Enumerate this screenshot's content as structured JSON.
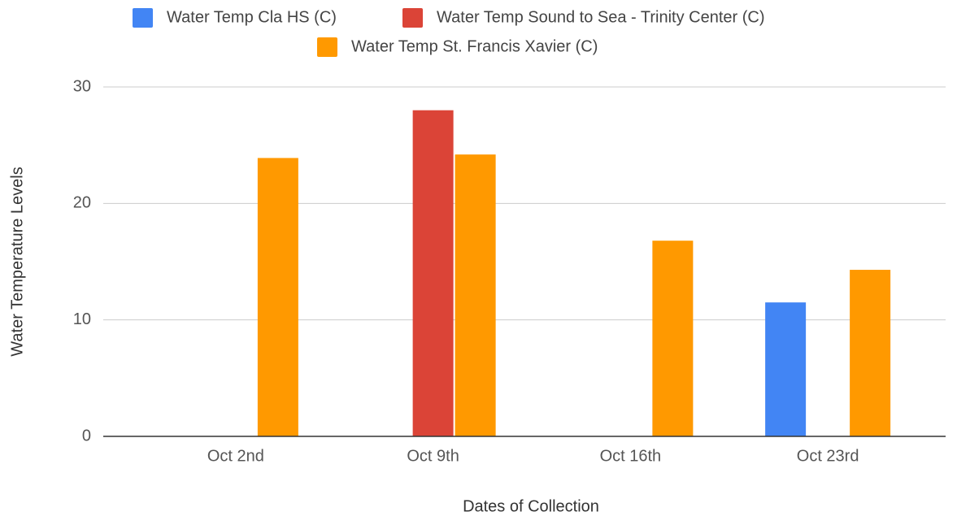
{
  "chart_data": {
    "type": "bar",
    "xlabel": "Dates of Collection",
    "ylabel": "Water Temperature Levels",
    "categories": [
      "Oct 2nd",
      "Oct 9th",
      "Oct 16th",
      "Oct 23rd"
    ],
    "series": [
      {
        "name": "Water Temp Cla HS (C)",
        "color": "#4285f4",
        "values": [
          null,
          null,
          null,
          11.5
        ]
      },
      {
        "name": "Water Temp Sound to Sea - Trinity Center (C)",
        "color": "#db4437",
        "values": [
          null,
          28,
          null,
          null
        ]
      },
      {
        "name": "Water Temp St. Francis Xavier (C)",
        "color": "#ff9900",
        "values": [
          23.9,
          24.2,
          16.8,
          14.3
        ]
      }
    ],
    "ylim": [
      0,
      30
    ],
    "yticks": [
      0,
      10,
      20,
      30
    ],
    "grid": true,
    "legend": "top"
  }
}
